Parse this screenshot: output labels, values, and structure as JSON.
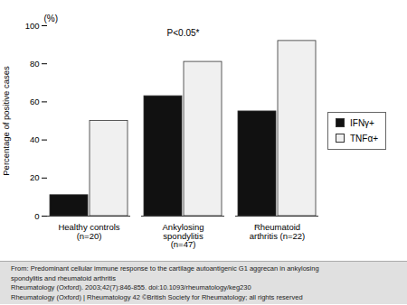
{
  "chart_data": {
    "type": "bar",
    "categories": [
      "Healthy controls\n(n=20)",
      "Ankylosing\nspondylitis\n(n=47)",
      "Rheumatoid\narthritis (n=22)"
    ],
    "series": [
      {
        "name": "IFNγ+",
        "color": "#111111",
        "values": [
          11,
          63,
          55
        ]
      },
      {
        "name": "TNFα+",
        "color": "#f0f0f0",
        "values": [
          50,
          81,
          92
        ]
      }
    ],
    "ylabel": "Percentage of positive cases",
    "ylim": [
      0,
      100
    ],
    "yticks": [
      0,
      20,
      40,
      60,
      80,
      100
    ],
    "annotations": [
      "(%)",
      "P<0.05*"
    ],
    "caption": [
      "From: Predominant cellular immune response to the cartilage autoantigenic G1 aggrecan in ankylosing",
      "spondylitis and rheumatoid arthritis",
      "Rheumatology (Oxford). 2003;42(7):846-855. doi:10.1093/rheumatology/keg230",
      "Rheumatology (Oxford) | Rheumatology 42 ©British Society for Rheumatology; all rights reserved"
    ],
    "legend": "right",
    "grid": false
  }
}
